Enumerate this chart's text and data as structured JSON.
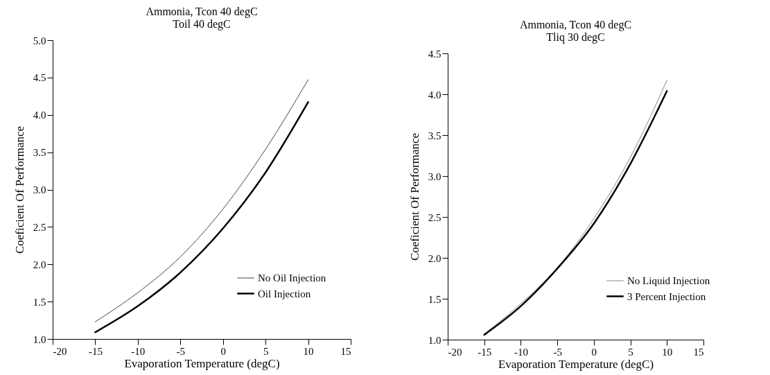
{
  "chart_data": [
    {
      "type": "line",
      "title": [
        "Ammonia, Tcon 40 degC",
        "Toil 40 degC"
      ],
      "xlabel": "Evaporation Temperature (degC)",
      "ylabel": "Coeficient Of Performance",
      "x": [
        -15,
        -10,
        -5,
        0,
        5,
        10
      ],
      "xlim": [
        -20,
        15
      ],
      "xticks": [
        -20,
        -15,
        -10,
        -5,
        0,
        5,
        10,
        15
      ],
      "ylim": [
        1.0,
        5.0
      ],
      "yticks": [
        {
          "value": 1,
          "label": "1.0"
        },
        {
          "value": 1.5,
          "label": "1.5"
        },
        {
          "value": 2,
          "label": "2.0"
        },
        {
          "value": 2.5,
          "label": "2.5"
        },
        {
          "value": 3,
          "label": "3.0"
        },
        {
          "value": 3.5,
          "label": "3.5"
        },
        {
          "value": 4,
          "label": "4.0"
        },
        {
          "value": 4.5,
          "label": "4.5"
        },
        {
          "value": 5,
          "label": "5.0"
        }
      ],
      "legend": "bottom right",
      "series": [
        {
          "name": "No Oil Injection",
          "color": "#444444",
          "values": [
            1.23,
            1.62,
            2.1,
            2.74,
            3.54,
            4.47
          ]
        },
        {
          "name": "Oil Injection",
          "color": "#000000",
          "values": [
            1.09,
            1.44,
            1.89,
            2.48,
            3.23,
            4.17
          ]
        }
      ]
    },
    {
      "type": "line",
      "title": [
        "Ammonia, Tcon 40 degC",
        "Tliq 30 degC"
      ],
      "xlabel": "Evaporation Temperature (degC)",
      "ylabel": "Coeficient Of Performance",
      "x": [
        -15,
        -10,
        -5,
        0,
        5,
        10
      ],
      "xlim": [
        -20,
        15
      ],
      "xticks": [
        -20,
        -15,
        -10,
        -5,
        0,
        5,
        10,
        15
      ],
      "ylim": [
        1.0,
        4.5
      ],
      "yticks": [
        {
          "value": 1,
          "label": "1.0"
        },
        {
          "value": 1.5,
          "label": "1.5"
        },
        {
          "value": 2,
          "label": "2.0"
        },
        {
          "value": 2.5,
          "label": "2.5"
        },
        {
          "value": 3,
          "label": "3.0"
        },
        {
          "value": 3.5,
          "label": "3.5"
        },
        {
          "value": 4,
          "label": "4.0"
        },
        {
          "value": 4.5,
          "label": "4.5"
        }
      ],
      "legend": "bottom right",
      "series": [
        {
          "name": "No Liquid Injection",
          "color": "#888888",
          "values": [
            1.07,
            1.44,
            1.88,
            2.48,
            3.23,
            4.17
          ]
        },
        {
          "name": "3 Percent Injection",
          "color": "#000000",
          "values": [
            1.06,
            1.41,
            1.87,
            2.42,
            3.15,
            4.04
          ]
        }
      ]
    }
  ]
}
